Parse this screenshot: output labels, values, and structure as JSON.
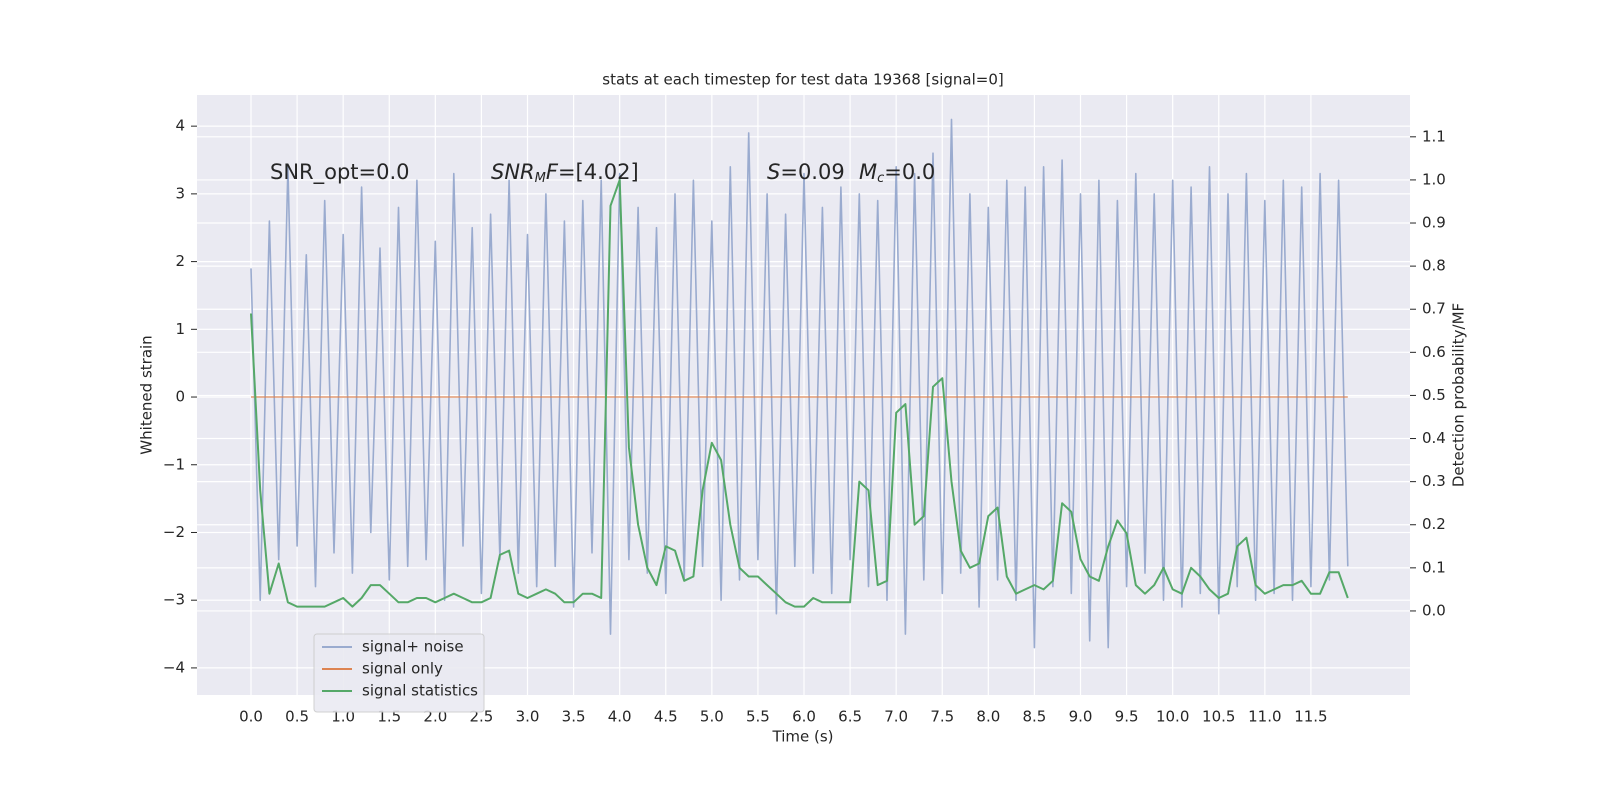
{
  "chart_data": {
    "type": "line",
    "title": "stats at each timestep for test data 19368 [signal=0]",
    "xlabel": "Time (s)",
    "ylabel": "Whitened strain",
    "y2label": "Detection probability/MF",
    "annotations": [
      [
        {
          "text": "SNR_opt=0.0"
        }
      ],
      [
        {
          "text": "SNR",
          "italic": true
        },
        {
          "text": "M",
          "italic": true,
          "sub": true
        },
        {
          "text": "F",
          "italic": true
        },
        {
          "text": "=[4.02]"
        }
      ],
      [
        {
          "text": "S",
          "italic": true
        },
        {
          "text": "=0.09"
        }
      ],
      [
        {
          "text": "M",
          "italic": true
        },
        {
          "text": "c",
          "italic": true,
          "sub": true
        },
        {
          "text": "=0.0"
        }
      ]
    ],
    "x": [
      0,
      0.1,
      0.2,
      0.3,
      0.4,
      0.5,
      0.6,
      0.7,
      0.8,
      0.9,
      1,
      1.1,
      1.2,
      1.3,
      1.4,
      1.5,
      1.6,
      1.7,
      1.8,
      1.9,
      2,
      2.1,
      2.2,
      2.3,
      2.4,
      2.5,
      2.6,
      2.7,
      2.8,
      2.9,
      3,
      3.1,
      3.2,
      3.3,
      3.4,
      3.5,
      3.6,
      3.7,
      3.8,
      3.9,
      4,
      4.1,
      4.2,
      4.3,
      4.4,
      4.5,
      4.6,
      4.7,
      4.8,
      4.9,
      5,
      5.1,
      5.2,
      5.3,
      5.4,
      5.5,
      5.6,
      5.7,
      5.8,
      5.9,
      6,
      6.1,
      6.2,
      6.3,
      6.4,
      6.5,
      6.6,
      6.7,
      6.8,
      6.9,
      7,
      7.1,
      7.2,
      7.3,
      7.4,
      7.5,
      7.6,
      7.7,
      7.8,
      7.9,
      8,
      8.1,
      8.2,
      8.3,
      8.4,
      8.5,
      8.6,
      8.7,
      8.8,
      8.9,
      9,
      9.1,
      9.2,
      9.3,
      9.4,
      9.5,
      9.6,
      9.7,
      9.8,
      9.9,
      10,
      10.1,
      10.2,
      10.3,
      10.4,
      10.5,
      10.6,
      10.7,
      10.8,
      10.9,
      11,
      11.1,
      11.2,
      11.3,
      11.4,
      11.5,
      11.6,
      11.7,
      11.8,
      11.9
    ],
    "series": [
      {
        "name": "signal+ noise",
        "color": "#9aabcf",
        "values": [
          1.9,
          -3.0,
          2.6,
          -2.4,
          3.4,
          -2.2,
          2.1,
          -2.8,
          2.9,
          -2.3,
          2.4,
          -2.6,
          3.1,
          -2.0,
          2.2,
          -2.7,
          2.8,
          -2.5,
          3.2,
          -2.4,
          2.3,
          -3.0,
          3.3,
          -2.2,
          2.5,
          -2.9,
          2.7,
          -2.4,
          3.2,
          -2.6,
          2.4,
          -2.8,
          3.0,
          -2.5,
          2.6,
          -3.1,
          2.9,
          -2.3,
          3.2,
          -3.5,
          3.3,
          -2.4,
          2.8,
          -2.6,
          2.5,
          -2.9,
          3.0,
          -2.7,
          3.2,
          -2.5,
          2.6,
          -3.0,
          3.4,
          -2.7,
          3.9,
          -2.4,
          3.0,
          -3.2,
          2.7,
          -2.5,
          3.3,
          -2.6,
          2.8,
          -2.9,
          3.1,
          -2.4,
          3.0,
          -2.8,
          2.9,
          -3.0,
          3.4,
          -3.5,
          3.3,
          -2.7,
          3.6,
          -2.9,
          4.1,
          -2.6,
          3.0,
          -3.1,
          2.8,
          -2.7,
          3.2,
          -3.0,
          3.1,
          -3.7,
          3.4,
          -2.8,
          3.5,
          -2.9,
          3.0,
          -3.6,
          3.2,
          -3.7,
          2.9,
          -2.8,
          3.3,
          -2.6,
          3.0,
          -3.0,
          3.2,
          -3.1,
          3.1,
          -2.9,
          3.4,
          -3.2,
          3.0,
          -2.8,
          3.3,
          -3.0,
          2.9,
          -2.9,
          3.2,
          -3.0,
          3.1,
          -2.8,
          3.3,
          -2.7,
          3.2,
          -2.5
        ]
      },
      {
        "name": "signal only",
        "color": "#dd8452",
        "values": [
          0,
          0,
          0,
          0,
          0,
          0,
          0,
          0,
          0,
          0,
          0,
          0,
          0,
          0,
          0,
          0,
          0,
          0,
          0,
          0,
          0,
          0,
          0,
          0,
          0,
          0,
          0,
          0,
          0,
          0,
          0,
          0,
          0,
          0,
          0,
          0,
          0,
          0,
          0,
          0,
          0,
          0,
          0,
          0,
          0,
          0,
          0,
          0,
          0,
          0,
          0,
          0,
          0,
          0,
          0,
          0,
          0,
          0,
          0,
          0,
          0,
          0,
          0,
          0,
          0,
          0,
          0,
          0,
          0,
          0,
          0,
          0,
          0,
          0,
          0,
          0,
          0,
          0,
          0,
          0,
          0,
          0,
          0,
          0,
          0,
          0,
          0,
          0,
          0,
          0,
          0,
          0,
          0,
          0,
          0,
          0,
          0,
          0,
          0,
          0,
          0,
          0,
          0,
          0,
          0,
          0,
          0,
          0,
          0,
          0,
          0,
          0,
          0,
          0,
          0,
          0,
          0,
          0,
          0,
          0
        ]
      },
      {
        "name": "signal statistics",
        "color": "#55a868",
        "axis": "y2",
        "values": [
          0.69,
          0.28,
          0.04,
          0.11,
          0.02,
          0.01,
          0.01,
          0.01,
          0.01,
          0.02,
          0.03,
          0.01,
          0.03,
          0.06,
          0.06,
          0.04,
          0.02,
          0.02,
          0.03,
          0.03,
          0.02,
          0.03,
          0.04,
          0.03,
          0.02,
          0.02,
          0.03,
          0.13,
          0.14,
          0.04,
          0.03,
          0.04,
          0.05,
          0.04,
          0.02,
          0.02,
          0.04,
          0.04,
          0.03,
          0.94,
          1.0,
          0.38,
          0.2,
          0.1,
          0.06,
          0.15,
          0.14,
          0.07,
          0.08,
          0.28,
          0.39,
          0.35,
          0.2,
          0.1,
          0.08,
          0.08,
          0.06,
          0.04,
          0.02,
          0.01,
          0.01,
          0.03,
          0.02,
          0.02,
          0.02,
          0.02,
          0.3,
          0.28,
          0.06,
          0.07,
          0.46,
          0.48,
          0.2,
          0.22,
          0.52,
          0.54,
          0.3,
          0.14,
          0.1,
          0.11,
          0.22,
          0.24,
          0.08,
          0.04,
          0.05,
          0.06,
          0.05,
          0.07,
          0.25,
          0.23,
          0.12,
          0.08,
          0.07,
          0.15,
          0.21,
          0.18,
          0.06,
          0.04,
          0.06,
          0.1,
          0.05,
          0.04,
          0.1,
          0.08,
          0.05,
          0.03,
          0.04,
          0.15,
          0.17,
          0.06,
          0.04,
          0.05,
          0.06,
          0.06,
          0.07,
          0.04,
          0.04,
          0.09,
          0.09,
          0.03
        ]
      }
    ],
    "xlim": [
      -0.586,
      12.575
    ],
    "ylim": [
      -4.4,
      4.46
    ],
    "y2lim": [
      -0.195,
      1.197
    ],
    "xticks": [
      {
        "value": 0,
        "label": "0.0"
      },
      0.5,
      {
        "value": 1,
        "label": "1.0"
      },
      1.5,
      {
        "value": 2,
        "label": "2.0"
      },
      2.5,
      {
        "value": 3,
        "label": "3.0"
      },
      3.5,
      {
        "value": 4,
        "label": "4.0"
      },
      4.5,
      {
        "value": 5,
        "label": "5.0"
      },
      5.5,
      {
        "value": 6,
        "label": "6.0"
      },
      6.5,
      {
        "value": 7,
        "label": "7.0"
      },
      7.5,
      {
        "value": 8,
        "label": "8.0"
      },
      8.5,
      {
        "value": 9,
        "label": "9.0"
      },
      9.5,
      {
        "value": 10,
        "label": "10.0"
      },
      10.5,
      {
        "value": 11,
        "label": "11.0"
      },
      11.5
    ],
    "yticks": [
      {
        "value": -4,
        "label": "−4"
      },
      {
        "value": -3,
        "label": "−3"
      },
      {
        "value": -2,
        "label": "−2"
      },
      {
        "value": -1,
        "label": "−1"
      },
      0,
      1,
      2,
      3,
      4
    ],
    "y2ticks": [
      {
        "value": 0,
        "label": "0.0"
      },
      0.1,
      0.2,
      0.3,
      0.4,
      0.5,
      0.6,
      0.7,
      0.8,
      0.9,
      {
        "value": 1,
        "label": "1.0"
      },
      1.1
    ],
    "grid": true,
    "legend": "lower left"
  }
}
